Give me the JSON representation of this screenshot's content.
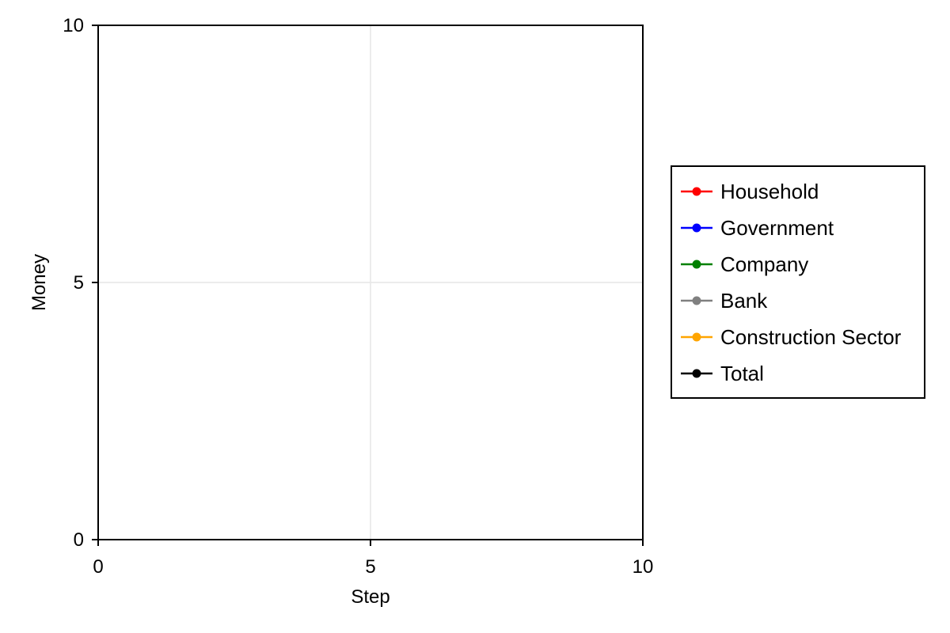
{
  "chart_data": {
    "type": "line",
    "title": "",
    "xlabel": "Step",
    "ylabel": "Money",
    "xlim": [
      0,
      10
    ],
    "ylim": [
      0,
      10
    ],
    "x_ticks": [
      0,
      5,
      10
    ],
    "y_ticks": [
      0,
      5,
      10
    ],
    "x_tick_labels": [
      "0",
      "5",
      "10"
    ],
    "y_tick_labels": [
      "0",
      "5",
      "10"
    ],
    "grid": true,
    "legend_position": "right",
    "series": [
      {
        "name": "Household",
        "color": "#ff0000",
        "marker": "circle",
        "x": [],
        "y": []
      },
      {
        "name": "Government",
        "color": "#0000ff",
        "marker": "circle",
        "x": [],
        "y": []
      },
      {
        "name": "Company",
        "color": "#008000",
        "marker": "circle",
        "x": [],
        "y": []
      },
      {
        "name": "Bank",
        "color": "#808080",
        "marker": "circle",
        "x": [],
        "y": []
      },
      {
        "name": "Construction Sector",
        "color": "#ffa500",
        "marker": "circle",
        "x": [],
        "y": []
      },
      {
        "name": "Total",
        "color": "#000000",
        "marker": "circle",
        "x": [],
        "y": []
      }
    ]
  }
}
